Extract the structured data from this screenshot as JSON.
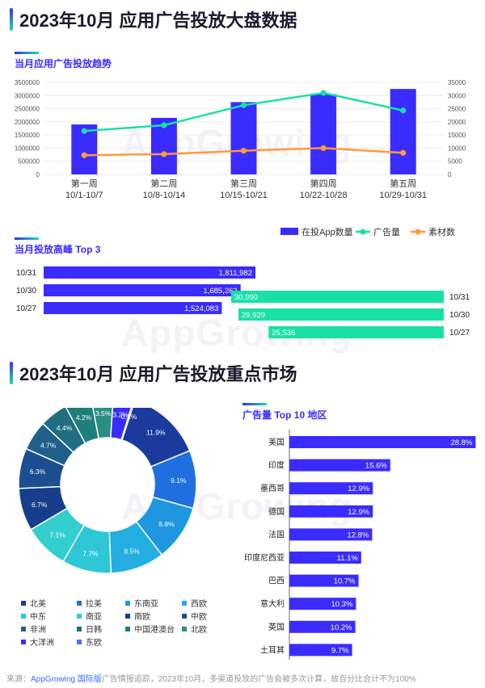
{
  "page": {
    "title1": "2023年10月 应用广告投放大盘数据",
    "title2": "2023年10月 应用广告投放重点市场",
    "watermark": "AppGrowing"
  },
  "trend": {
    "subtitle": "当月应用广告投放趋势",
    "legend": [
      "在投App数量",
      "广告量",
      "素材数"
    ],
    "colors": {
      "bar": "#3a2bff",
      "line_ads": "#19e0a6",
      "line_materials": "#ff9a3c"
    }
  },
  "peak": {
    "subtitle": "当月投放高峰 Top 3"
  },
  "regions": {
    "subtitle": "广告量 Top 10 地区"
  },
  "footer": {
    "prefix": "来源：",
    "link": "AppGrowing 国际版",
    "text": "广告情报追踪，2023年10月，多渠道投放的广告会被多次计算，故百分比合计不为100%"
  },
  "chart_data": [
    {
      "type": "bar",
      "categories": [
        "第一周\n10/1-10/7",
        "第二周\n10/8-10/14",
        "第三周\n10/15-10/21",
        "第四周\n10/22-10/28",
        "第五周\n10/29-10/31"
      ],
      "series": [
        {
          "name": "在投App数量",
          "type": "bar",
          "axis": "right",
          "values": [
            19000,
            21500,
            27500,
            30500,
            32500
          ]
        },
        {
          "name": "广告量",
          "type": "line",
          "axis": "left",
          "values": [
            1650000,
            1870000,
            2630000,
            3100000,
            2430000
          ]
        },
        {
          "name": "素材数",
          "type": "line",
          "axis": "left",
          "values": [
            730000,
            770000,
            900000,
            1000000,
            820000
          ]
        }
      ],
      "yticks_left": [
        "0",
        "500000",
        "1000000",
        "1500000",
        "2000000",
        "2500000",
        "3000000",
        "3500000"
      ],
      "yticks_right": [
        "0",
        "5000",
        "10000",
        "15000",
        "20000",
        "25000",
        "30000",
        "35000"
      ],
      "ylim_left": [
        0,
        3500000
      ],
      "ylim_right": [
        0,
        35000
      ],
      "legend": "bottom-right"
    },
    {
      "type": "bar",
      "orientation": "horizontal",
      "name": "ads",
      "categories": [
        "10/31",
        "10/30",
        "10/27"
      ],
      "values": [
        1811982,
        1685262,
        1524083
      ],
      "labels": [
        "1,811,982",
        "1,685,262",
        "1,524,083"
      ],
      "color": "#3a2bff"
    },
    {
      "type": "bar",
      "orientation": "horizontal",
      "name": "apps",
      "categories": [
        "10/31",
        "10/30",
        "10/27"
      ],
      "values": [
        30990,
        29929,
        25536
      ],
      "labels": [
        "30,990",
        "29,929",
        "25,536"
      ],
      "color": "#19e0a6"
    },
    {
      "type": "pie",
      "donut": true,
      "categories": [
        "北美",
        "拉美",
        "东南亚",
        "西欧",
        "中东",
        "南亚",
        "南欧",
        "中欧",
        "非洲",
        "日韩",
        "中国港澳台",
        "北欧",
        "大洋洲",
        "东欧"
      ],
      "values": [
        11.9,
        9.1,
        8.8,
        8.5,
        7.7,
        7.1,
        6.7,
        6.3,
        4.7,
        4.4,
        4.2,
        3.5,
        3.2,
        0.2
      ],
      "labels": [
        "11.9%",
        "9.1%",
        "8.8%",
        "8.5%",
        "7.7%",
        "7.1%",
        "6.7%",
        "6.3%",
        "4.7%",
        "4.4%",
        "4.2%",
        "3.5%",
        "3.2%",
        "0.2%"
      ],
      "colors": [
        "#1a3a9e",
        "#1f6fe0",
        "#1e97e0",
        "#22aee0",
        "#2ec7d6",
        "#33cfcf",
        "#173e8a",
        "#1b4f92",
        "#1f5f8a",
        "#1f6e82",
        "#1d7e7a",
        "#2a8f82",
        "#3a2bff",
        "#5a6bff"
      ]
    },
    {
      "type": "bar",
      "orientation": "horizontal",
      "categories": [
        "美国",
        "印度",
        "墨西哥",
        "德国",
        "法国",
        "印度尼西亚",
        "巴西",
        "意大利",
        "英国",
        "土耳其"
      ],
      "values": [
        28.8,
        15.6,
        12.9,
        12.9,
        12.8,
        11.1,
        10.7,
        10.3,
        10.2,
        9.7
      ],
      "labels": [
        "28.8%",
        "15.6%",
        "12.9%",
        "12.9%",
        "12.8%",
        "11.1%",
        "10.7%",
        "10.3%",
        "10.2%",
        "9.7%"
      ],
      "color": "#3a2bff",
      "xlim": [
        0,
        30
      ]
    }
  ]
}
